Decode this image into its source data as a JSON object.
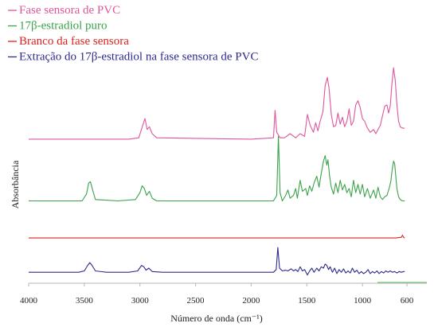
{
  "chart_data": {
    "type": "line",
    "title": "",
    "xlabel": "Número de onda (cm⁻¹)",
    "ylabel": "Absorbância",
    "xlim": [
      4000,
      600
    ],
    "x_reversed": true,
    "x_ticks": [
      "4000",
      "3500",
      "3000",
      "2500",
      "2000",
      "1500",
      "1000",
      "600"
    ],
    "y_ticks": [],
    "grid": false,
    "legend_position": "top-left",
    "y_units": "arbitrary (stacked, offset traces)",
    "series": [
      {
        "name": "Fase sensora de PVC",
        "color": "#e0559c",
        "baseline": 10.5,
        "points": [
          [
            4000,
            10.5
          ],
          [
            3100,
            10.5
          ],
          [
            3010,
            10.6
          ],
          [
            2975,
            11.5
          ],
          [
            2955,
            12.0
          ],
          [
            2935,
            11.2
          ],
          [
            2915,
            11.4
          ],
          [
            2890,
            10.9
          ],
          [
            2850,
            10.6
          ],
          [
            2000,
            10.5
          ],
          [
            1800,
            10.6
          ],
          [
            1785,
            12.6
          ],
          [
            1770,
            11.0
          ],
          [
            1740,
            10.6
          ],
          [
            1700,
            10.6
          ],
          [
            1650,
            10.9
          ],
          [
            1600,
            10.6
          ],
          [
            1560,
            10.9
          ],
          [
            1520,
            10.7
          ],
          [
            1495,
            12.3
          ],
          [
            1470,
            11.5
          ],
          [
            1440,
            11.0
          ],
          [
            1420,
            11.7
          ],
          [
            1400,
            11.1
          ],
          [
            1380,
            11.8
          ],
          [
            1355,
            12.5
          ],
          [
            1335,
            14.4
          ],
          [
            1315,
            15.0
          ],
          [
            1300,
            14.2
          ],
          [
            1280,
            12.3
          ],
          [
            1260,
            11.4
          ],
          [
            1240,
            11.5
          ],
          [
            1220,
            12.4
          ],
          [
            1200,
            11.6
          ],
          [
            1180,
            12.1
          ],
          [
            1160,
            11.4
          ],
          [
            1140,
            11.8
          ],
          [
            1120,
            12.7
          ],
          [
            1100,
            11.5
          ],
          [
            1080,
            11.8
          ],
          [
            1060,
            13.0
          ],
          [
            1040,
            13.3
          ],
          [
            1020,
            12.8
          ],
          [
            1000,
            12.0
          ],
          [
            980,
            11.8
          ],
          [
            955,
            11.3
          ],
          [
            930,
            11.0
          ],
          [
            900,
            11.2
          ],
          [
            880,
            10.9
          ],
          [
            860,
            11.2
          ],
          [
            840,
            11.5
          ],
          [
            820,
            12.2
          ],
          [
            800,
            12.9
          ],
          [
            780,
            13.0
          ],
          [
            765,
            12.4
          ],
          [
            750,
            12.9
          ],
          [
            735,
            14.5
          ],
          [
            720,
            15.7
          ],
          [
            705,
            14.8
          ],
          [
            690,
            13.0
          ],
          [
            675,
            11.8
          ],
          [
            660,
            11.4
          ],
          [
            640,
            11.3
          ],
          [
            620,
            11.3
          ]
        ]
      },
      {
        "name": "17β-estradiol puro",
        "color": "#3aa34a",
        "baseline": 6.0,
        "points": [
          [
            4000,
            6.0
          ],
          [
            3520,
            6.0
          ],
          [
            3480,
            6.5
          ],
          [
            3460,
            7.3
          ],
          [
            3445,
            7.4
          ],
          [
            3425,
            6.8
          ],
          [
            3400,
            6.1
          ],
          [
            3200,
            6.0
          ],
          [
            3040,
            6.1
          ],
          [
            3000,
            6.6
          ],
          [
            2980,
            7.1
          ],
          [
            2960,
            6.9
          ],
          [
            2940,
            6.4
          ],
          [
            2915,
            6.7
          ],
          [
            2890,
            6.2
          ],
          [
            2850,
            6.0
          ],
          [
            2000,
            6.0
          ],
          [
            1800,
            6.0
          ],
          [
            1770,
            6.4
          ],
          [
            1755,
            10.7
          ],
          [
            1740,
            6.6
          ],
          [
            1720,
            6.0
          ],
          [
            1690,
            6.4
          ],
          [
            1670,
            6.8
          ],
          [
            1650,
            6.2
          ],
          [
            1620,
            6.4
          ],
          [
            1600,
            6.9
          ],
          [
            1585,
            6.2
          ],
          [
            1560,
            7.5
          ],
          [
            1540,
            6.7
          ],
          [
            1510,
            6.9
          ],
          [
            1495,
            6.4
          ],
          [
            1475,
            7.1
          ],
          [
            1455,
            6.7
          ],
          [
            1435,
            7.3
          ],
          [
            1410,
            7.8
          ],
          [
            1390,
            7.0
          ],
          [
            1370,
            8.0
          ],
          [
            1350,
            8.9
          ],
          [
            1335,
            9.3
          ],
          [
            1320,
            8.6
          ],
          [
            1310,
            9.0
          ],
          [
            1295,
            7.8
          ],
          [
            1280,
            7.0
          ],
          [
            1260,
            6.5
          ],
          [
            1240,
            7.3
          ],
          [
            1220,
            6.6
          ],
          [
            1200,
            7.5
          ],
          [
            1180,
            6.8
          ],
          [
            1160,
            7.2
          ],
          [
            1140,
            6.6
          ],
          [
            1120,
            6.9
          ],
          [
            1100,
            6.3
          ],
          [
            1080,
            7.5
          ],
          [
            1060,
            6.6
          ],
          [
            1040,
            7.2
          ],
          [
            1020,
            6.5
          ],
          [
            1000,
            7.2
          ],
          [
            980,
            6.3
          ],
          [
            955,
            6.9
          ],
          [
            930,
            6.2
          ],
          [
            900,
            6.8
          ],
          [
            880,
            6.2
          ],
          [
            860,
            7.0
          ],
          [
            840,
            6.3
          ],
          [
            820,
            6.1
          ],
          [
            800,
            6.3
          ],
          [
            780,
            6.4
          ],
          [
            760,
            6.9
          ],
          [
            745,
            7.4
          ],
          [
            730,
            8.4
          ],
          [
            720,
            8.9
          ],
          [
            710,
            8.7
          ],
          [
            700,
            7.8
          ],
          [
            690,
            6.9
          ],
          [
            675,
            6.3
          ],
          [
            660,
            6.1
          ],
          [
            640,
            6.0
          ],
          [
            620,
            6.0
          ]
        ]
      },
      {
        "name": "Branco da fase sensora",
        "color": "#e02020",
        "baseline": 3.3,
        "points": [
          [
            4000,
            3.3
          ],
          [
            2000,
            3.3
          ],
          [
            1000,
            3.3
          ],
          [
            700,
            3.3
          ],
          [
            650,
            3.35
          ],
          [
            640,
            3.5
          ],
          [
            630,
            3.35
          ],
          [
            620,
            3.3
          ]
        ]
      },
      {
        "name": "Extração do 17β-estradiol na fase sensora de PVC",
        "color": "#2e2a8c",
        "baseline": 0.8,
        "points": [
          [
            4000,
            0.8
          ],
          [
            3550,
            0.8
          ],
          [
            3500,
            0.9
          ],
          [
            3470,
            1.3
          ],
          [
            3450,
            1.5
          ],
          [
            3430,
            1.3
          ],
          [
            3400,
            0.9
          ],
          [
            3300,
            0.8
          ],
          [
            3100,
            0.8
          ],
          [
            3020,
            0.9
          ],
          [
            2985,
            1.3
          ],
          [
            2965,
            1.2
          ],
          [
            2945,
            0.95
          ],
          [
            2920,
            1.1
          ],
          [
            2890,
            0.85
          ],
          [
            2800,
            0.8
          ],
          [
            2000,
            0.8
          ],
          [
            1800,
            0.8
          ],
          [
            1775,
            1.0
          ],
          [
            1760,
            2.6
          ],
          [
            1745,
            1.1
          ],
          [
            1720,
            0.9
          ],
          [
            1690,
            0.95
          ],
          [
            1670,
            0.9
          ],
          [
            1640,
            1.05
          ],
          [
            1620,
            0.9
          ],
          [
            1600,
            1.0
          ],
          [
            1580,
            0.85
          ],
          [
            1560,
            1.2
          ],
          [
            1540,
            0.9
          ],
          [
            1520,
            1.0
          ],
          [
            1495,
            0.6
          ],
          [
            1475,
            0.9
          ],
          [
            1455,
            1.1
          ],
          [
            1435,
            0.8
          ],
          [
            1410,
            1.1
          ],
          [
            1390,
            0.9
          ],
          [
            1370,
            1.2
          ],
          [
            1350,
            1.1
          ],
          [
            1335,
            1.4
          ],
          [
            1320,
            1.3
          ],
          [
            1305,
            1.0
          ],
          [
            1290,
            1.2
          ],
          [
            1270,
            0.8
          ],
          [
            1250,
            1.1
          ],
          [
            1230,
            0.7
          ],
          [
            1210,
            1.0
          ],
          [
            1190,
            0.8
          ],
          [
            1170,
            1.05
          ],
          [
            1150,
            0.75
          ],
          [
            1130,
            0.9
          ],
          [
            1110,
            0.75
          ],
          [
            1090,
            1.1
          ],
          [
            1070,
            0.8
          ],
          [
            1050,
            0.95
          ],
          [
            1030,
            0.7
          ],
          [
            1010,
            0.85
          ],
          [
            990,
            0.7
          ],
          [
            970,
            0.8
          ],
          [
            950,
            1.0
          ],
          [
            930,
            0.7
          ],
          [
            910,
            0.85
          ],
          [
            890,
            0.75
          ],
          [
            870,
            0.9
          ],
          [
            850,
            0.7
          ],
          [
            830,
            0.85
          ],
          [
            810,
            0.75
          ],
          [
            790,
            0.9
          ],
          [
            770,
            0.8
          ],
          [
            750,
            0.9
          ],
          [
            730,
            0.8
          ],
          [
            710,
            0.85
          ],
          [
            690,
            0.75
          ],
          [
            670,
            0.85
          ],
          [
            650,
            0.8
          ],
          [
            630,
            0.85
          ],
          [
            620,
            0.85
          ]
        ]
      }
    ]
  }
}
